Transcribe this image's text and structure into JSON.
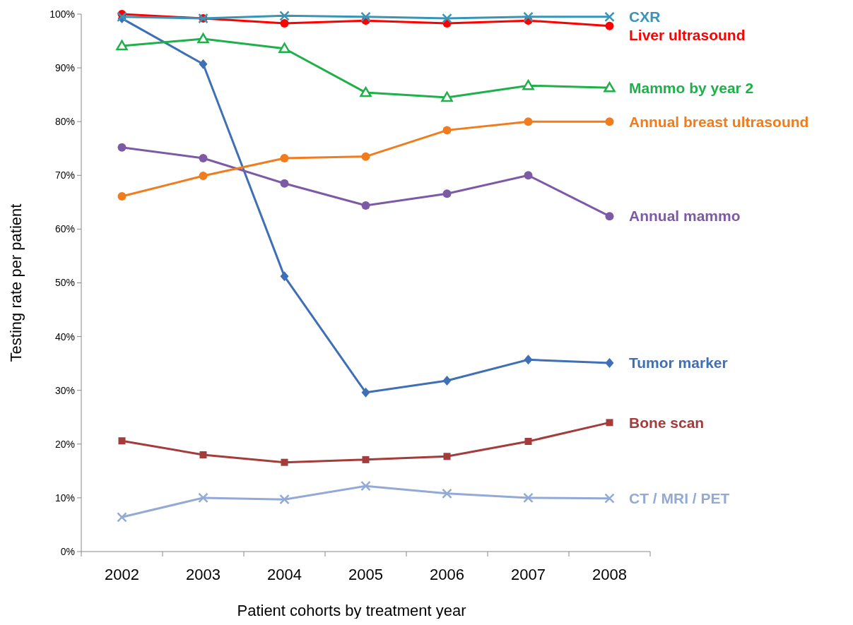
{
  "chart_data": {
    "type": "line",
    "xlabel": "Patient cohorts by treatment year",
    "ylabel": "Testing rate per patient",
    "categories": [
      "2002",
      "2003",
      "2004",
      "2005",
      "2006",
      "2007",
      "2008"
    ],
    "ylim": [
      0,
      100
    ],
    "yticks": [
      {
        "value": 0,
        "label": "0%"
      },
      {
        "value": 10,
        "label": "10%"
      },
      {
        "value": 20,
        "label": "20%"
      },
      {
        "value": 30,
        "label": "30%"
      },
      {
        "value": 40,
        "label": "40%"
      },
      {
        "value": 50,
        "label": "50%"
      },
      {
        "value": 60,
        "label": "60%"
      },
      {
        "value": 70,
        "label": "70%"
      },
      {
        "value": 80,
        "label": "80%"
      },
      {
        "value": 90,
        "label": "90%"
      },
      {
        "value": 100,
        "label": "100%"
      }
    ],
    "grid": false,
    "legend": false,
    "line_style": "solid",
    "series": [
      {
        "name": "CXR",
        "color": "#3a94b5",
        "marker": "cross",
        "values": [
          99.5,
          99.2,
          99.7,
          99.5,
          99.2,
          99.5,
          99.5
        ]
      },
      {
        "name": "Liver ultrasound",
        "color": "#ff0000",
        "marker": "circle",
        "values": [
          100,
          99.2,
          98.3,
          98.8,
          98.3,
          98.8,
          97.8
        ]
      },
      {
        "name": "Mammo by year 2",
        "color": "#1fb04b",
        "marker": "triangle",
        "values": [
          94.1,
          95.4,
          93.6,
          85.4,
          84.5,
          86.7,
          86.3
        ]
      },
      {
        "name": "Annual breast ultrasound",
        "color": "#f07c1e",
        "marker": "circle",
        "values": [
          66.1,
          69.9,
          73.2,
          73.5,
          78.4,
          80.0,
          80.0
        ]
      },
      {
        "name": "Annual mammo",
        "color": "#7d5aa6",
        "marker": "circle",
        "values": [
          75.2,
          73.2,
          68.5,
          64.4,
          66.6,
          70.0,
          62.4
        ]
      },
      {
        "name": "Tumor marker",
        "color": "#3f6fb5",
        "marker": "diamond",
        "values": [
          99.2,
          90.7,
          51.2,
          29.6,
          31.8,
          35.7,
          35.1
        ]
      },
      {
        "name": "Bone scan",
        "color": "#a33c3a",
        "marker": "square",
        "values": [
          20.6,
          18.0,
          16.6,
          17.1,
          17.7,
          20.5,
          24.0
        ]
      },
      {
        "name": "CT / MRI / PET",
        "color": "#93aad6",
        "marker": "cross",
        "values": [
          6.4,
          10.0,
          9.7,
          12.2,
          10.8,
          10.0,
          9.9
        ]
      }
    ]
  }
}
